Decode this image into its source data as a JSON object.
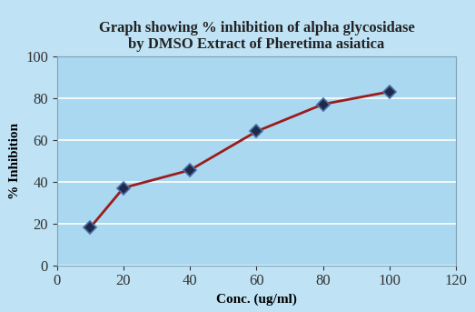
{
  "chart_data": {
    "type": "line",
    "title": "Graph showing % inhibition of alpha glycosidase\nby DMSO Extract of Pheretima asiatica",
    "x_label": "Conc. (ug/ml)",
    "y_label": "% Inhibition",
    "x": [
      10,
      20,
      40,
      60,
      80,
      100
    ],
    "values": [
      18,
      37,
      45.5,
      64,
      77,
      83
    ],
    "color": "#9b1c1c",
    "marker": "diamond",
    "line_style": "solid",
    "xlim": [
      0,
      120
    ],
    "xticks": [
      0,
      20,
      40,
      60,
      80,
      100,
      120
    ],
    "ylim": [
      0,
      100
    ],
    "yticks": [
      0,
      20,
      40,
      60,
      80,
      100
    ],
    "grid": true
  }
}
